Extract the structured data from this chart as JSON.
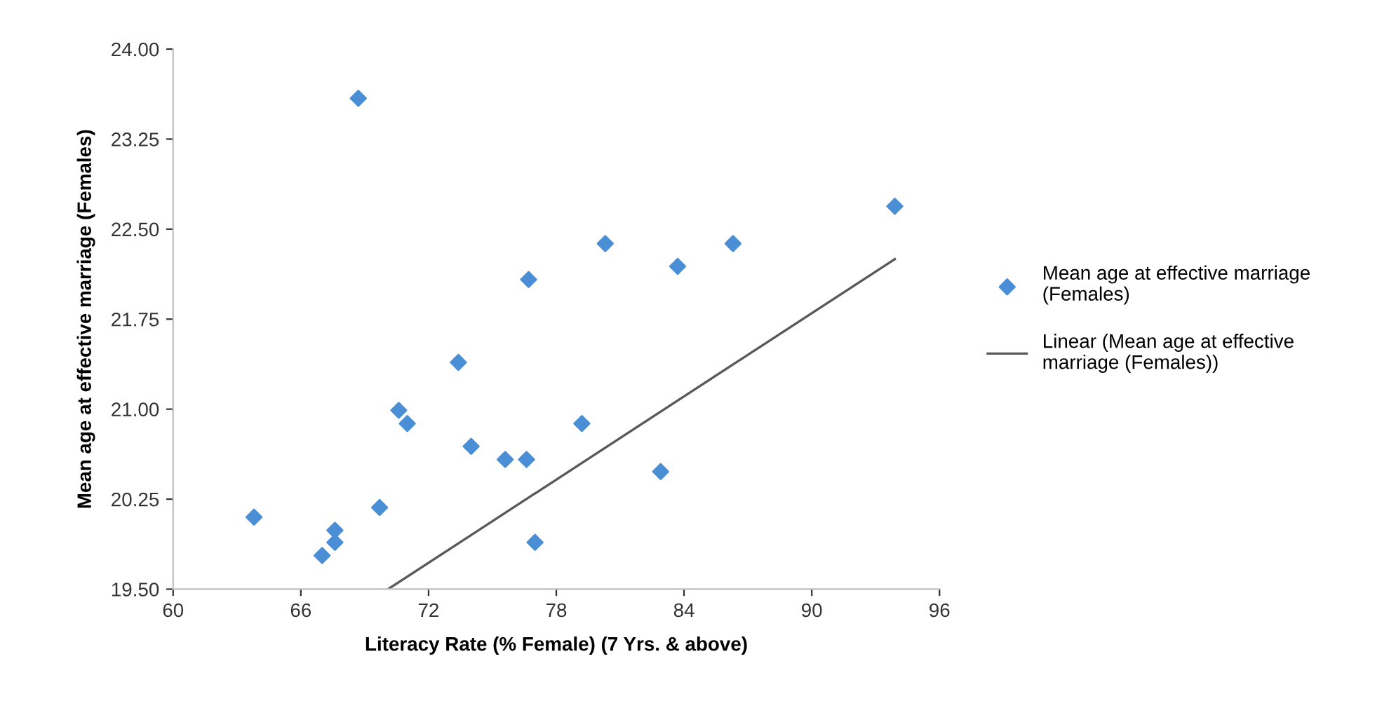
{
  "chart_data": {
    "type": "scatter",
    "xlabel": "Literacy Rate (% Female) (7 Yrs. & above)",
    "ylabel": "Mean age at effective marriage (Females)",
    "series": [
      {
        "name": "Mean age at effective marriage\n(Females)",
        "color": "#4a8fd6",
        "marker": "diamond",
        "x": [
          63.8,
          67.0,
          67.6,
          67.6,
          68.7,
          69.7,
          70.6,
          71.0,
          73.4,
          74.0,
          75.6,
          76.7,
          76.6,
          77.0,
          79.2,
          80.3,
          82.9,
          83.7,
          86.3,
          93.9
        ],
        "values": [
          20.1,
          19.78,
          19.89,
          19.99,
          23.59,
          20.18,
          20.99,
          20.88,
          21.39,
          20.69,
          20.58,
          22.08,
          20.58,
          19.89,
          20.88,
          22.38,
          20.48,
          22.19,
          22.38,
          22.69
        ]
      },
      {
        "name": "Linear (Mean age at effective\nmarriage (Females))",
        "type": "line",
        "color": "#595959",
        "marker": "none",
        "line_style": "solid",
        "x": [
          70.1,
          93.9
        ],
        "values": [
          19.5,
          22.25
        ]
      }
    ],
    "xlim": [
      60,
      96
    ],
    "xticks": [
      60,
      66,
      72,
      78,
      84,
      90,
      96
    ],
    "ylim": [
      19.5,
      24.0
    ],
    "yticks": [
      {
        "value": 19.5,
        "label": "19.50"
      },
      {
        "value": 20.25,
        "label": "20.25"
      },
      {
        "value": 21.0,
        "label": "21.00"
      },
      {
        "value": 21.75,
        "label": "21.75"
      },
      {
        "value": 22.5,
        "label": "22.50"
      },
      {
        "value": 23.25,
        "label": "23.25"
      },
      {
        "value": 24.0,
        "label": "24.00"
      }
    ],
    "grid": false,
    "legend": "right"
  }
}
